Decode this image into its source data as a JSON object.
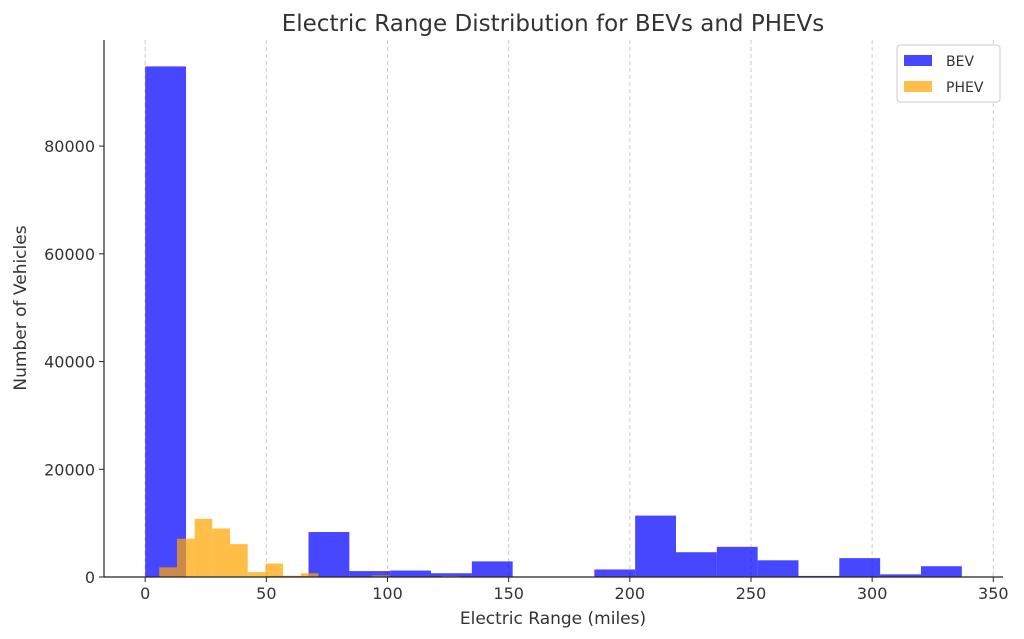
{
  "chart_data": {
    "type": "bar",
    "title": "Electric Range Distribution for BEVs and PHEVs",
    "xlabel": "Electric Range (miles)",
    "ylabel": "Number of Vehicles",
    "xlim": [
      -17,
      354
    ],
    "ylim": [
      0,
      99700
    ],
    "xticks": [
      0,
      50,
      100,
      150,
      200,
      250,
      300,
      350
    ],
    "yticks": [
      0,
      20000,
      40000,
      60000,
      80000
    ],
    "grid": "x dashed",
    "legend_position": "top-right",
    "series": [
      {
        "name": "BEV",
        "color": "#0000ff",
        "bin_start": 0,
        "bin_width": 16.85,
        "values": [
          94800,
          0,
          0,
          200,
          8350,
          1100,
          1200,
          700,
          2900,
          0,
          0,
          1400,
          11400,
          4600,
          5600,
          3100,
          200,
          3500,
          500,
          2000
        ]
      },
      {
        "name": "PHEV",
        "color": "#ffa500",
        "bin_start": 5.8,
        "bin_width": 7.3,
        "values": [
          1800,
          7100,
          10800,
          9000,
          6100,
          900,
          2500,
          200,
          700,
          0,
          0,
          0,
          300,
          0,
          0,
          0,
          200,
          0,
          0,
          0
        ]
      }
    ]
  }
}
